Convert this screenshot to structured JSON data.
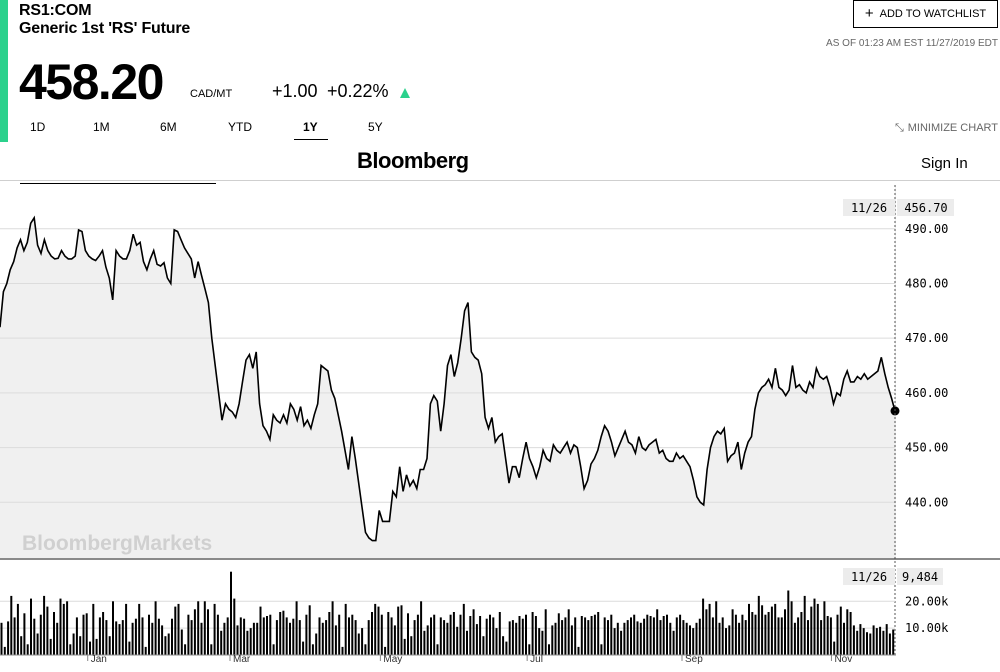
{
  "quote": {
    "ticker": "RS1:COM",
    "name": "Generic 1st 'RS' Future",
    "price": "458.20",
    "unit": "CAD/MT",
    "change": "+1.00",
    "change_pct": "+0.22%",
    "direction_icon": "triangle-up-icon",
    "as_of": "AS OF 01:23 AM EST 11/27/2019 EDT"
  },
  "actions": {
    "watchlist_label": "ADD TO WATCHLIST",
    "minimize_label": "MINIMIZE CHART"
  },
  "ranges": [
    "1D",
    "1M",
    "6M",
    "YTD",
    "1Y",
    "5Y"
  ],
  "active_range": "1Y",
  "brand": {
    "logo": "Bloomberg",
    "signin": "Sign In",
    "watermark": "BloombergMarkets"
  },
  "colors": {
    "accent": "#2bd18c",
    "line": "#000000",
    "fill": "#f0f0f0"
  },
  "chart_data": {
    "type": "line",
    "price_ticks": [
      "490.00",
      "480.00",
      "470.00",
      "460.00",
      "450.00",
      "440.00"
    ],
    "volume_ticks": [
      "20.00k",
      "10.00k"
    ],
    "x_labels": [
      "Jan",
      "Mar",
      "May",
      "Jul",
      "Sep",
      "Nov"
    ],
    "crosshair": {
      "date": "11/26",
      "price": "456.70",
      "volume": "9,484"
    },
    "ylim": [
      430,
      498
    ],
    "volume_max": 32000,
    "grid": true,
    "price_series": [
      472.0,
      478.5,
      480.0,
      482.5,
      484.0,
      486.5,
      488.0,
      486.0,
      487.5,
      491.0,
      492.0,
      487.0,
      485.5,
      488.0,
      486.0,
      485.0,
      484.5,
      484.6,
      486.0,
      485.0,
      484.5,
      484.5,
      485.0,
      489.8,
      489.5,
      486.0,
      485.0,
      484.5,
      484.2,
      485.0,
      486.0,
      483.0,
      481.0,
      477.0,
      486.0,
      485.0,
      484.5,
      484.5,
      486.0,
      489.0,
      487.0,
      487.5,
      484.0,
      482.5,
      484.5,
      486.0,
      483.5,
      483.2,
      483.8,
      481.0,
      480.0,
      489.8,
      489.5,
      488.0,
      486.5,
      485.5,
      484.5,
      481.0,
      484.0,
      481.5,
      479.0,
      476.5,
      470.0,
      465.0,
      460.0,
      455.0,
      458.0,
      457.0,
      456.5,
      455.5,
      458.0,
      462.0,
      466.0,
      467.0,
      464.5,
      467.5,
      458.0,
      454.0,
      453.0,
      451.5,
      456.0,
      455.0,
      454.5,
      456.0,
      454.5,
      458.0,
      457.0,
      455.0,
      457.5,
      454.0,
      455.0,
      453.5,
      456.0,
      458.0,
      465.0,
      464.5,
      464.0,
      460.5,
      459.0,
      456.0,
      453.0,
      449.5,
      446.0,
      452.0,
      448.0,
      443.5,
      439.0,
      434.5,
      433.5,
      433.0,
      433.0,
      438.5,
      436.5,
      436.5,
      436.5,
      442.0,
      441.0,
      446.5,
      442.0,
      445.0,
      443.0,
      444.0,
      442.5,
      446.0,
      446.0,
      448.0,
      458.0,
      459.5,
      458.5,
      453.0,
      458.0,
      465.0,
      467.0,
      463.0,
      465.5,
      470.0,
      475.0,
      476.5,
      467.5,
      466.5,
      466.0,
      463.5,
      455.5,
      453.5,
      455.5,
      451.0,
      452.0,
      452.5,
      448.0,
      443.5,
      446.5,
      446.5,
      444.5,
      448.0,
      451.0,
      448.0,
      446.5,
      444.5,
      446.5,
      449.5,
      448.0,
      447.5,
      450.5,
      449.5,
      449.0,
      450.0,
      451.0,
      449.0,
      450.5,
      450.0,
      446.5,
      442.5,
      444.0,
      447.0,
      448.0,
      449.5,
      452.0,
      454.0,
      453.0,
      451.0,
      448.5,
      450.0,
      451.5,
      453.0,
      451.0,
      450.5,
      449.0,
      452.0,
      450.0,
      449.5,
      450.5,
      451.0,
      451.5,
      449.0,
      449.5,
      448.0,
      447.5,
      447.5,
      449.0,
      448.0,
      448.5,
      447.5,
      446.5,
      444.0,
      441.0,
      440.0,
      439.5,
      446.0,
      450.0,
      452.0,
      453.0,
      452.5,
      453.5,
      447.5,
      448.5,
      449.0,
      451.0,
      446.0,
      449.0,
      451.0,
      452.0,
      457.0,
      460.0,
      461.0,
      461.5,
      462.5,
      461.0,
      464.5,
      461.0,
      460.5,
      459.5,
      460.5,
      465.0,
      461.0,
      461.5,
      460.5,
      460.0,
      462.0,
      461.0,
      464.5,
      463.0,
      462.5,
      463.0,
      461.0,
      458.0,
      460.0,
      459.5,
      462.5,
      464.0,
      462.0,
      462.0,
      463.0,
      462.5,
      463.5,
      462.5,
      463.0,
      463.5,
      464.0,
      466.5,
      463.5,
      461.0,
      459.0,
      456.7
    ],
    "volume_series": [
      12000,
      3000,
      12500,
      22000,
      14000,
      19000,
      7000,
      15500,
      4000,
      21000,
      13500,
      8000,
      15000,
      22000,
      18000,
      6000,
      16000,
      12000,
      21000,
      19000,
      20000,
      4000,
      8000,
      14000,
      7000,
      15000,
      15500,
      5000,
      19000,
      6000,
      14000,
      16000,
      13000,
      7000,
      20000,
      12500,
      11500,
      13000,
      19000,
      5000,
      12000,
      13500,
      19000,
      14000,
      3000,
      15000,
      12000,
      20000,
      13500,
      11000,
      7000,
      8000,
      13500,
      18000,
      19000,
      9500,
      4000,
      15000,
      13000,
      17000,
      20000,
      12000,
      20000,
      17000,
      4000,
      19000,
      15000,
      9000,
      12000,
      14000,
      31000,
      21000,
      11000,
      14000,
      13500,
      9000,
      10000,
      12000,
      12000,
      18000,
      14000,
      14500,
      15000,
      4000,
      13000,
      16000,
      16500,
      14000,
      12000,
      13500,
      20000,
      13000,
      5000,
      15000,
      18500,
      4000,
      8000,
      14000,
      12000,
      13000,
      16000,
      20000,
      11000,
      15000,
      3000,
      19000,
      14000,
      15000,
      13000,
      8000,
      10000,
      4000,
      13000,
      16000,
      19000,
      18000,
      15000,
      3000,
      16000,
      14000,
      11000,
      18000,
      18500,
      6000,
      15500,
      7000,
      13000,
      15000,
      20000,
      9000,
      11000,
      14000,
      15000,
      4000,
      14000,
      13000,
      12000,
      15000,
      16000,
      10500,
      15000,
      19000,
      9000,
      14500,
      17000,
      11500,
      14500,
      7000,
      13500,
      15000,
      14000,
      10000,
      16000,
      7000,
      5000,
      12500,
      13000,
      12000,
      14500,
      13500,
      15000,
      4000,
      16000,
      14500,
      10000,
      9000,
      17000,
      4000,
      11000,
      12000,
      15500,
      13000,
      14000,
      17000,
      11000,
      14000,
      3000,
      14500,
      14000,
      13000,
      14500,
      15000,
      16000,
      4000,
      14000,
      13000,
      15000,
      10000,
      12000,
      9000,
      12000,
      13000,
      14000,
      15000,
      12500,
      12000,
      13500,
      15000,
      14500,
      14000,
      17000,
      13000,
      14500,
      15000,
      12000,
      9000,
      14000,
      15000,
      13000,
      12000,
      11000,
      10000,
      12000,
      13500,
      21000,
      17000,
      19000,
      14000,
      20000,
      12000,
      14000,
      10000,
      11000,
      17000,
      15000,
      12000,
      15000,
      13000,
      19000,
      16000,
      15000,
      22000,
      18500,
      15000,
      16000,
      18000,
      19000,
      14000,
      14000,
      17000,
      24000,
      20000,
      12000,
      14000,
      16000,
      22000,
      13000,
      18000,
      21000,
      19000,
      13000,
      20000,
      14500,
      14000,
      5000,
      15000,
      18000,
      12000,
      17000,
      16000,
      11000,
      9000,
      11500,
      10000,
      8500,
      8000,
      11000,
      10000,
      10500,
      9000,
      11500,
      8000,
      9484
    ]
  }
}
